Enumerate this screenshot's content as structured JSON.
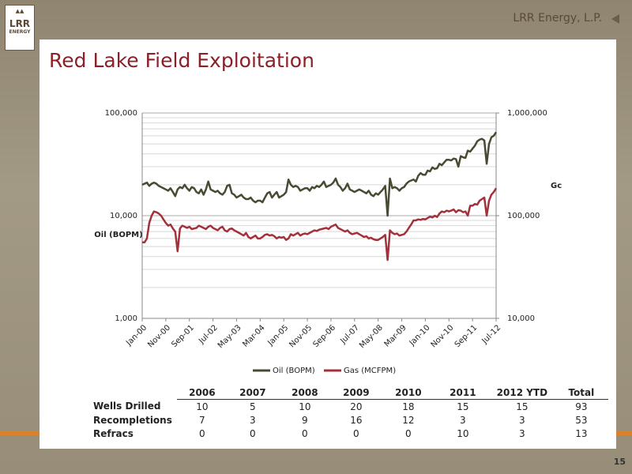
{
  "header": {
    "company": "LRR Energy, L.P.",
    "logo": [
      "LRR",
      "ENERGY"
    ],
    "page_number": "15"
  },
  "title": "Red Lake Field Exploitation",
  "chart_data": {
    "type": "line",
    "log_scale": true,
    "grid": true,
    "y_label": "Oil (BOPM)",
    "y2_label": "Gc",
    "categories": [
      "Jan-00",
      null,
      null,
      null,
      null,
      null,
      null,
      null,
      null,
      null,
      "Nov-00",
      null,
      null,
      null,
      null,
      null,
      null,
      null,
      null,
      null,
      "Sep-01",
      null,
      null,
      null,
      null,
      null,
      null,
      null,
      null,
      null,
      "Jul-02",
      null,
      null,
      null,
      null,
      null,
      null,
      null,
      null,
      null,
      "May-03",
      null,
      null,
      null,
      null,
      null,
      null,
      null,
      null,
      null,
      "Mar-04",
      null,
      null,
      null,
      null,
      null,
      null,
      null,
      null,
      null,
      "Jan-05",
      null,
      null,
      null,
      null,
      null,
      null,
      null,
      null,
      null,
      "Nov-05",
      null,
      null,
      null,
      null,
      null,
      null,
      null,
      null,
      null,
      "Sep-06",
      null,
      null,
      null,
      null,
      null,
      null,
      null,
      null,
      null,
      "Jul-07",
      null,
      null,
      null,
      null,
      null,
      null,
      null,
      null,
      null,
      "May-08",
      null,
      null,
      null,
      null,
      null,
      null,
      null,
      null,
      null,
      "Mar-09",
      null,
      null,
      null,
      null,
      null,
      null,
      null,
      null,
      null,
      "Jan-10",
      null,
      null,
      null,
      null,
      null,
      null,
      null,
      null,
      null,
      "Nov-10",
      null,
      null,
      null,
      null,
      null,
      null,
      null,
      null,
      null,
      "Sep-11",
      null,
      null,
      null,
      null,
      null,
      null,
      null,
      null,
      null,
      "Jul-12"
    ],
    "series": [
      {
        "name": "Oil (BOPM)",
        "color": "#4a4a32",
        "axis": "y",
        "values": [
          20000,
          20500,
          21000,
          19500,
          20500,
          21000,
          20500,
          19500,
          19000,
          18500,
          18000,
          17500,
          18500,
          17000,
          15500,
          18000,
          19000,
          18500,
          20000,
          18500,
          17500,
          19000,
          18500,
          17000,
          16500,
          18000,
          16000,
          18000,
          21500,
          18000,
          17500,
          17000,
          17500,
          16500,
          16000,
          17000,
          19500,
          20000,
          16500,
          16000,
          15000,
          15500,
          16000,
          15000,
          14500,
          14500,
          15000,
          14000,
          13500,
          14000,
          14000,
          13500,
          15000,
          16500,
          17000,
          15000,
          16000,
          17000,
          15000,
          15500,
          16000,
          17000,
          22500,
          20000,
          19000,
          19500,
          19000,
          17500,
          18000,
          18500,
          18500,
          17500,
          19000,
          18500,
          19500,
          19000,
          20000,
          21500,
          19000,
          19500,
          20000,
          21000,
          23000,
          20000,
          19000,
          17500,
          18500,
          20500,
          18000,
          17500,
          17000,
          17500,
          18000,
          17500,
          17000,
          16500,
          17500,
          16000,
          15500,
          16500,
          16000,
          17000,
          18000,
          19500,
          10000,
          23000,
          18500,
          19000,
          18500,
          17500,
          18500,
          19000,
          20500,
          21500,
          22000,
          22500,
          21500,
          24500,
          26000,
          25000,
          25000,
          27500,
          27000,
          29500,
          28500,
          29000,
          32000,
          31000,
          33000,
          35000,
          35000,
          34500,
          36000,
          35500,
          30000,
          38000,
          37000,
          36500,
          43000,
          42000,
          45000,
          48000,
          53000,
          55000,
          56000,
          54000,
          32000,
          50000,
          58000,
          60000,
          65000
        ]
      },
      {
        "name": "Gas (MCFPM)",
        "color": "#a3313b",
        "axis": "y2",
        "values": [
          55000,
          55000,
          60000,
          85000,
          100000,
          110000,
          108000,
          105000,
          100000,
          92000,
          85000,
          80000,
          82000,
          75000,
          70000,
          45000,
          75000,
          80000,
          78000,
          76000,
          78000,
          74000,
          75000,
          76000,
          80000,
          78000,
          76000,
          74000,
          78000,
          80000,
          76000,
          74000,
          72000,
          76000,
          78000,
          72000,
          70000,
          74000,
          75000,
          72000,
          70000,
          68000,
          66000,
          64000,
          68000,
          62000,
          60000,
          62000,
          64000,
          60000,
          60000,
          62000,
          65000,
          66000,
          64000,
          65000,
          63000,
          60000,
          62000,
          61000,
          62000,
          58000,
          60000,
          66000,
          64000,
          66000,
          68000,
          64000,
          66000,
          67000,
          66000,
          68000,
          70000,
          72000,
          71000,
          73000,
          74000,
          75000,
          76000,
          74000,
          78000,
          80000,
          82000,
          76000,
          74000,
          72000,
          70000,
          72000,
          68000,
          66000,
          67000,
          68000,
          66000,
          64000,
          62000,
          63000,
          60000,
          61000,
          59000,
          58000,
          58000,
          60000,
          62000,
          65000,
          37000,
          72000,
          68000,
          66000,
          67000,
          64000,
          65000,
          66000,
          70000,
          76000,
          82000,
          90000,
          90000,
          92000,
          91000,
          93000,
          92000,
          95000,
          98000,
          96000,
          100000,
          97000,
          105000,
          110000,
          108000,
          112000,
          110000,
          112000,
          115000,
          108000,
          113000,
          112000,
          108000,
          110000,
          100000,
          125000,
          125000,
          130000,
          128000,
          140000,
          145000,
          150000,
          100000,
          140000,
          160000,
          170000,
          185000
        ]
      }
    ],
    "ylim": [
      1000,
      100000
    ],
    "yticks": [
      {
        "value": 1000,
        "label": "1,000"
      },
      {
        "value": 10000,
        "label": "10,000"
      },
      {
        "value": 100000,
        "label": "100,000"
      }
    ],
    "y2lim": [
      10000,
      1000000
    ],
    "y2ticks": [
      {
        "value": 10000,
        "label": "10,000"
      },
      {
        "value": 100000,
        "label": "100,000"
      },
      {
        "value": 1000000,
        "label": "1,000,000"
      }
    ],
    "legend": "bottom"
  },
  "table": {
    "columns": [
      "2006",
      "2007",
      "2008",
      "2009",
      "2010",
      "2011",
      "2012 YTD",
      "Total"
    ],
    "rows": [
      {
        "label": "Wells Drilled",
        "values": [
          "10",
          "5",
          "10",
          "20",
          "18",
          "15",
          "15",
          "93"
        ]
      },
      {
        "label": "Recompletions",
        "values": [
          "7",
          "3",
          "9",
          "16",
          "12",
          "3",
          "3",
          "53"
        ]
      },
      {
        "label": "Refracs",
        "values": [
          "0",
          "0",
          "0",
          "0",
          "0",
          "10",
          "3",
          "13"
        ]
      }
    ]
  }
}
